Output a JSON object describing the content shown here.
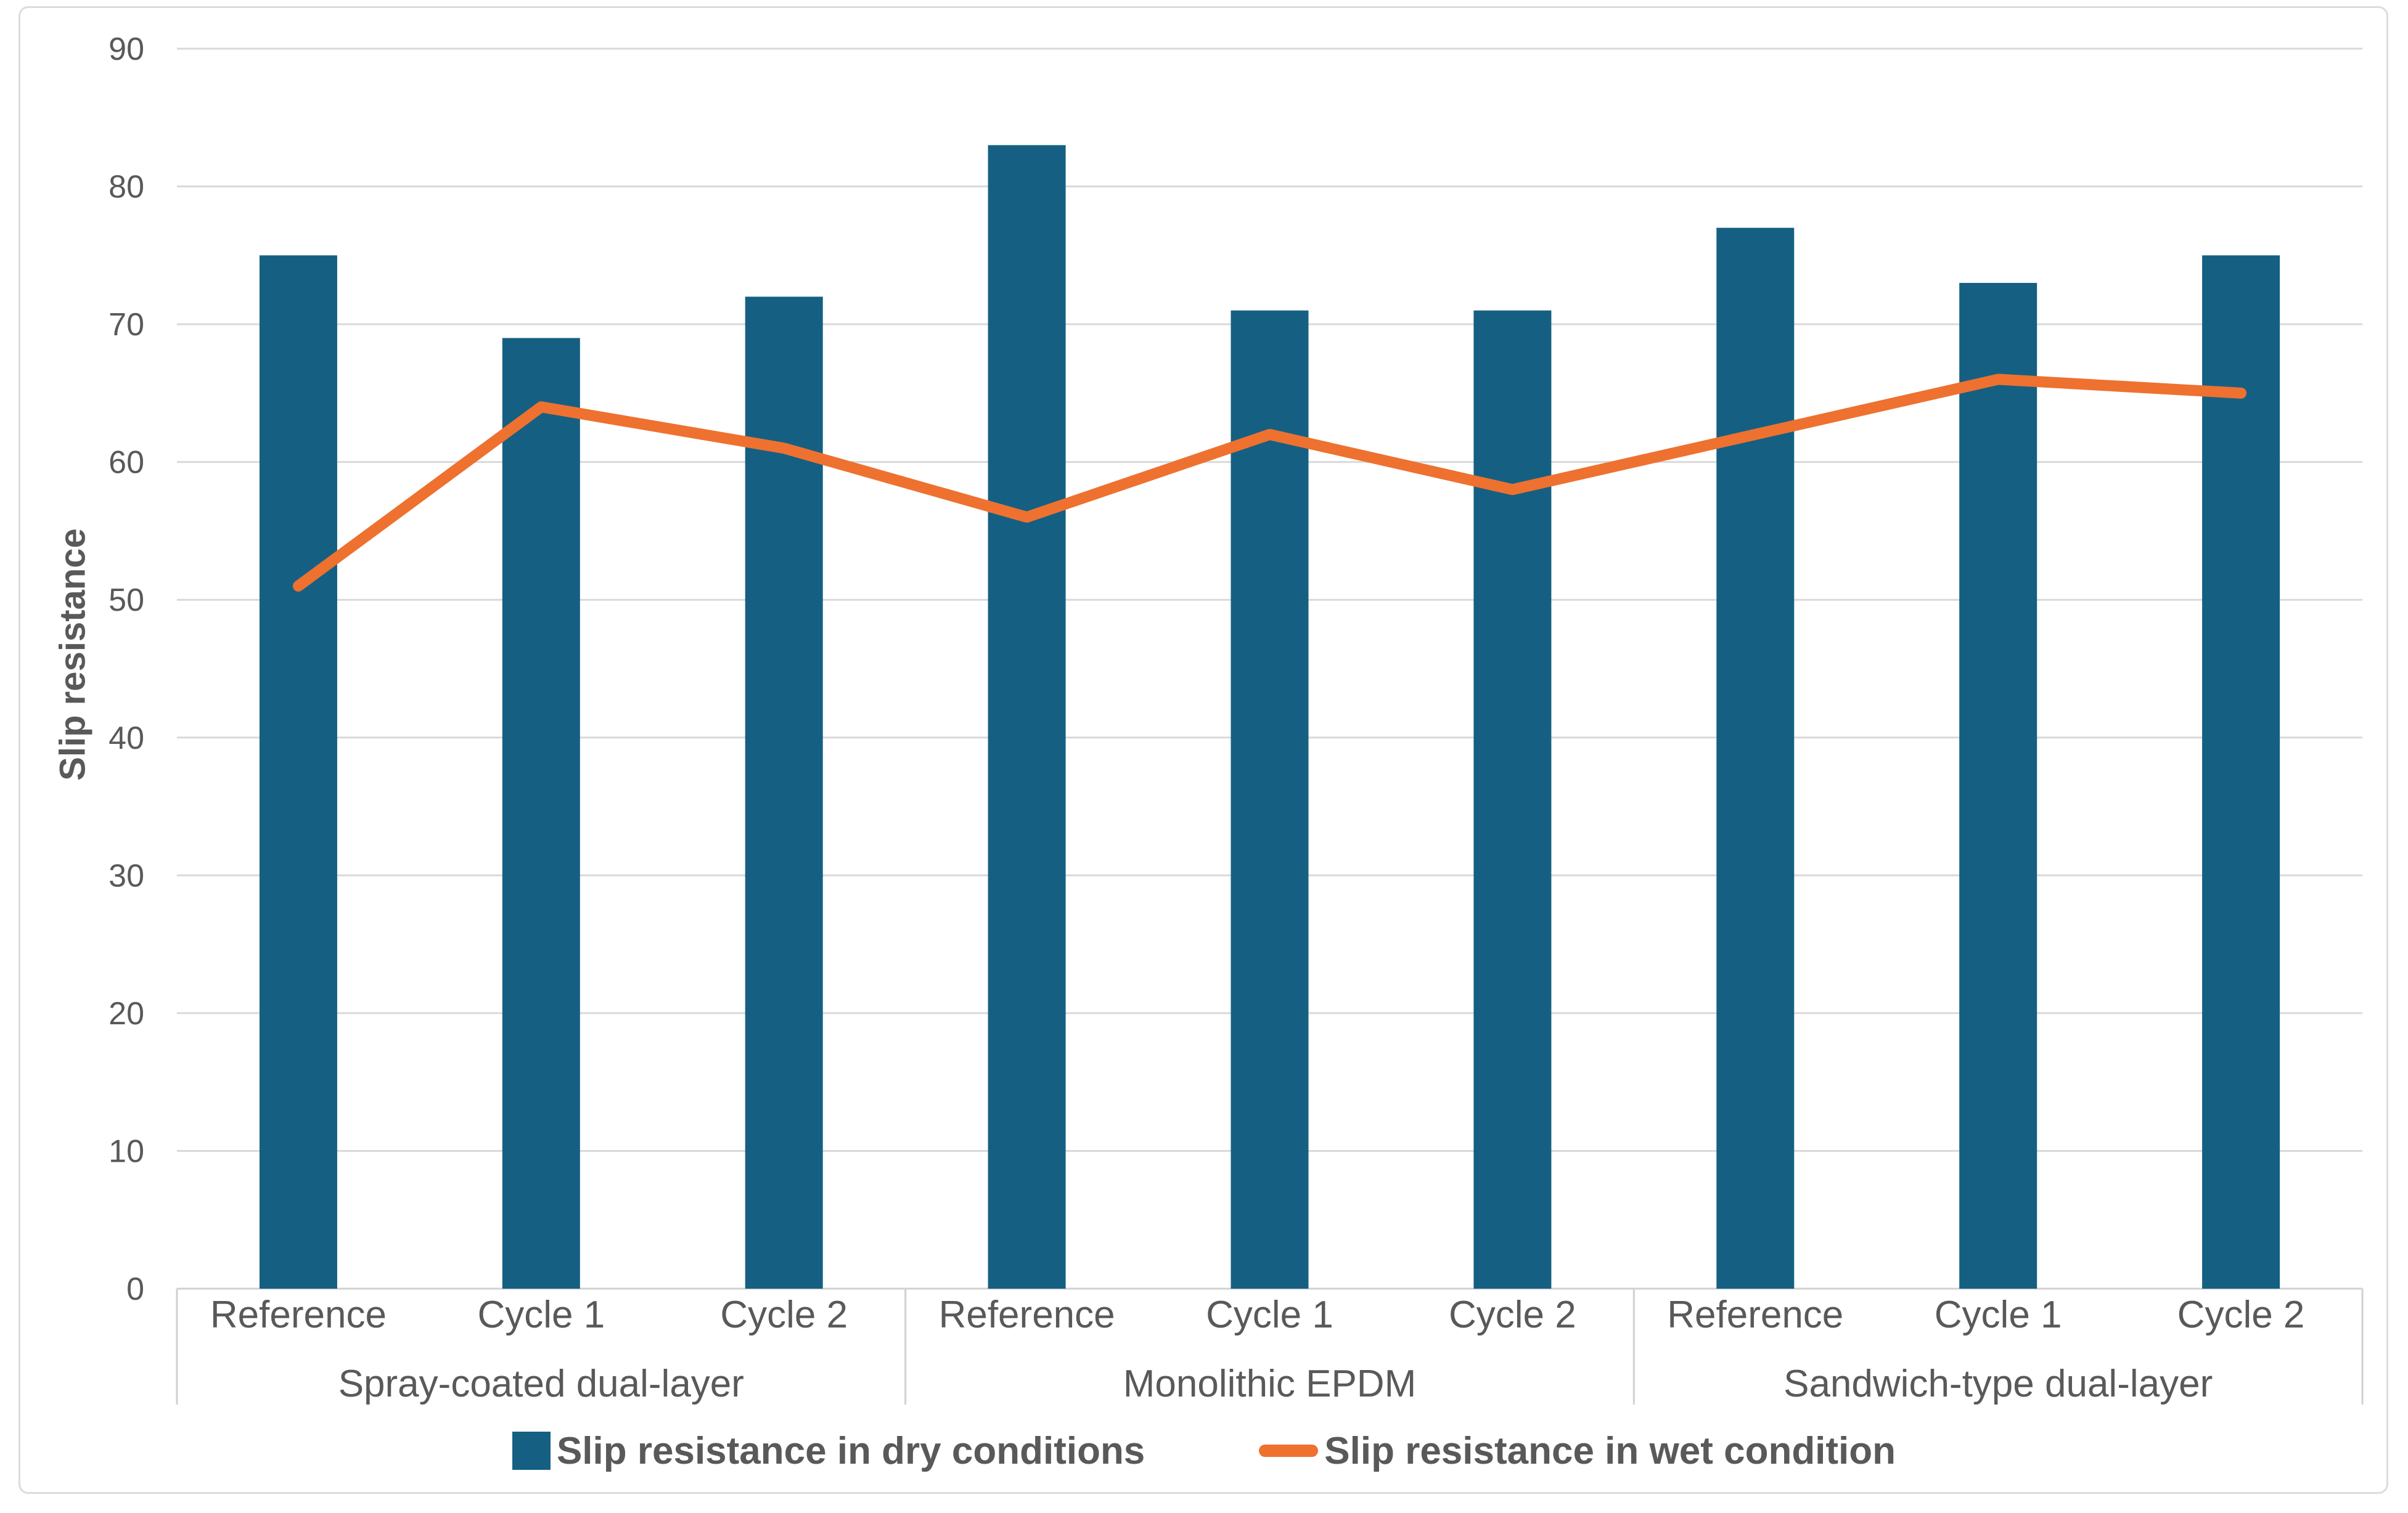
{
  "chart_data": {
    "type": "bar",
    "title": "",
    "xlabel": "",
    "ylabel": "Slip resistance",
    "ylim": [
      0,
      90
    ],
    "ytick_step": 10,
    "yticks": [
      0,
      10,
      20,
      30,
      40,
      50,
      60,
      70,
      80,
      90
    ],
    "grid": true,
    "legend_position": "bottom",
    "groups": [
      {
        "label": "Spray-coated dual-layer",
        "categories": [
          "Reference",
          "Cycle 1",
          "Cycle 2"
        ]
      },
      {
        "label": "Monolithic EPDM",
        "categories": [
          "Reference",
          "Cycle 1",
          "Cycle 2"
        ]
      },
      {
        "label": "Sandwich-type dual-layer",
        "categories": [
          "Reference",
          "Cycle 1",
          "Cycle 2"
        ]
      }
    ],
    "series": [
      {
        "name": "Slip resistance in dry conditions",
        "type": "bar",
        "color": "#156082",
        "values": [
          75,
          69,
          72,
          83,
          71,
          71,
          77,
          73,
          75
        ]
      },
      {
        "name": "Slip resistance in wet condition",
        "type": "line",
        "color": "#EE7130",
        "values": [
          51,
          64,
          61,
          56,
          62,
          58,
          62,
          66,
          65
        ]
      }
    ]
  },
  "colors": {
    "background": "#FFFFFF",
    "figure_border": "#DCDCDC",
    "gridline": "#D9D9D9",
    "axis_line": "#D0D0D0",
    "tick_text": "#595959",
    "label_text": "#595959",
    "legend_text": "#595959"
  }
}
